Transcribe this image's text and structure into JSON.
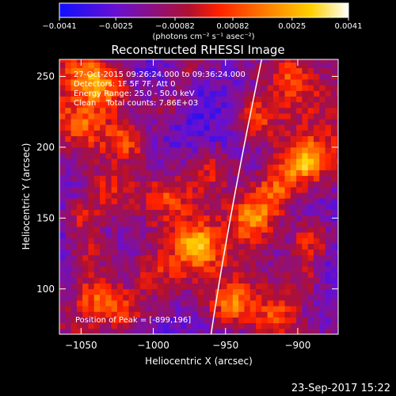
{
  "chart_data": {
    "type": "heatmap",
    "title": "Reconstructed RHESSI Image",
    "xlabel": "Heliocentric X (arcsec)",
    "ylabel": "Heliocentric Y (arcsec)",
    "xlim": [
      -1065,
      -872
    ],
    "ylim": [
      68,
      262
    ],
    "xticks": [
      -1050,
      -1000,
      -950,
      -900
    ],
    "yticks": [
      100,
      150,
      200,
      250
    ],
    "x_tick_labels": [
      "−1050",
      "−1000",
      "−950",
      "−900"
    ],
    "y_tick_labels": [
      "100",
      "150",
      "200",
      "250"
    ],
    "grid": false,
    "colorbar": {
      "min": -0.0041,
      "max": 0.0041,
      "ticks": [
        -0.0041,
        -0.0025,
        -0.00082,
        0.00082,
        0.0025,
        0.0041
      ],
      "tick_labels": [
        "−0.0041",
        "−0.0025",
        "−0.00082",
        "0.00082",
        "0.0025",
        "0.0041"
      ],
      "units_label": "(photons cm⁻² s⁻¹ asec⁻²)",
      "colors": [
        "#1010ff",
        "#6a10d0",
        "#b01030",
        "#ff2000",
        "#ff8000",
        "#ffd000",
        "#ffffff"
      ]
    },
    "annotations": [
      "27-Oct-2015 09:26:24.000 to 09:36:24.000",
      "Detectors: 1F 5F 7F, Att 0",
      "Energy Range: 25.0 - 50.0 keV",
      "Clean    Total counts: 7.86E+03"
    ],
    "peak_label": "Position of Peak = [-899,196]",
    "peak": [
      -899,
      196
    ],
    "limb_curve": [
      [
        -960,
        68
      ],
      [
        -948,
        150
      ],
      [
        -925,
        262
      ]
    ],
    "sources": [
      {
        "x": -1045,
        "y": 250,
        "amp": 0.003
      },
      {
        "x": -1030,
        "y": 240,
        "amp": 0.0024
      },
      {
        "x": -1050,
        "y": 215,
        "amp": 0.0022
      },
      {
        "x": -1020,
        "y": 205,
        "amp": 0.0027
      },
      {
        "x": -990,
        "y": 230,
        "amp": 0.0022
      },
      {
        "x": -975,
        "y": 258,
        "amp": 0.0018
      },
      {
        "x": -1030,
        "y": 170,
        "amp": 0.002
      },
      {
        "x": -990,
        "y": 165,
        "amp": 0.0018
      },
      {
        "x": -960,
        "y": 185,
        "amp": 0.002
      },
      {
        "x": -1050,
        "y": 150,
        "amp": 0.0025
      },
      {
        "x": -1045,
        "y": 125,
        "amp": 0.0022
      },
      {
        "x": -970,
        "y": 130,
        "amp": 0.0033
      },
      {
        "x": -1000,
        "y": 110,
        "amp": 0.0016
      },
      {
        "x": -1040,
        "y": 95,
        "amp": 0.003
      },
      {
        "x": -1020,
        "y": 85,
        "amp": 0.002
      },
      {
        "x": -945,
        "y": 90,
        "amp": 0.003
      },
      {
        "x": -915,
        "y": 80,
        "amp": 0.0025
      },
      {
        "x": -930,
        "y": 150,
        "amp": 0.0034
      },
      {
        "x": -915,
        "y": 170,
        "amp": 0.003
      },
      {
        "x": -895,
        "y": 190,
        "amp": 0.0041
      },
      {
        "x": -890,
        "y": 135,
        "amp": 0.003
      },
      {
        "x": -895,
        "y": 110,
        "amp": 0.0018
      },
      {
        "x": -930,
        "y": 220,
        "amp": 0.0024
      },
      {
        "x": -905,
        "y": 250,
        "amp": 0.002
      }
    ],
    "background_level": -0.0018
  },
  "footer": {
    "timestamp": "23-Sep-2017 15:22"
  }
}
